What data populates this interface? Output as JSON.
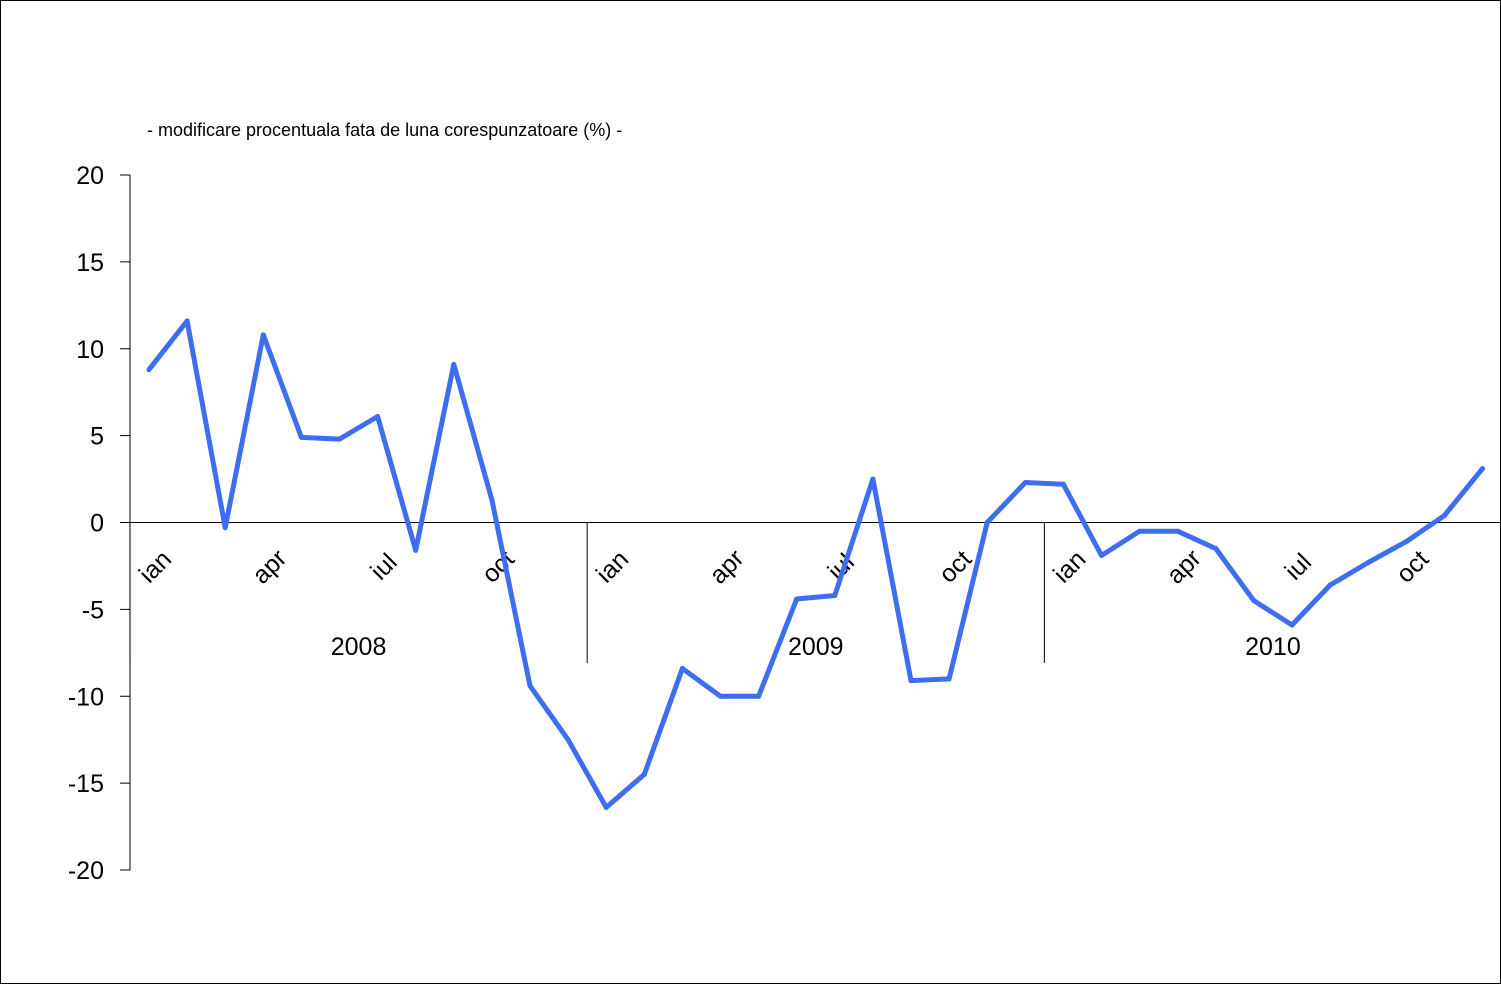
{
  "chart_data": {
    "type": "line",
    "subtitle": "- modificare procentuala fata de luna corespunzatoare (%) -",
    "title": "",
    "xlabel": "",
    "ylabel": "",
    "ylim": [
      -20,
      20
    ],
    "yticks": [
      "20",
      "15",
      "10",
      "5",
      "0",
      "-5",
      "-10",
      "-15",
      "-20"
    ],
    "ytick_values": [
      20,
      15,
      10,
      5,
      0,
      -5,
      -10,
      -15,
      -20
    ],
    "month_tick_labels": [
      "ian",
      "apr",
      "iul",
      "oct",
      "ian",
      "apr",
      "iul",
      "oct",
      "ian",
      "apr",
      "iul",
      "oct"
    ],
    "month_tick_indices": [
      0,
      3,
      6,
      9,
      12,
      15,
      18,
      21,
      24,
      27,
      30,
      33
    ],
    "year_labels": [
      "2008",
      "2009",
      "2010"
    ],
    "grid": false,
    "legend": "none",
    "series": [
      {
        "color": "#3d6ef0",
        "values": [
          8.8,
          11.6,
          -0.3,
          10.8,
          4.9,
          4.8,
          6.1,
          -1.6,
          9.1,
          1.3,
          -9.4,
          -12.5,
          -16.4,
          -14.5,
          -8.4,
          -10.0,
          -10.0,
          -4.4,
          -4.2,
          2.5,
          -9.1,
          -9.0,
          0.0,
          2.3,
          2.2,
          -1.9,
          -0.5,
          -0.5,
          -1.5,
          -4.5,
          -5.9,
          -3.6,
          -2.3,
          -1.1,
          0.4,
          3.1
        ]
      }
    ]
  }
}
